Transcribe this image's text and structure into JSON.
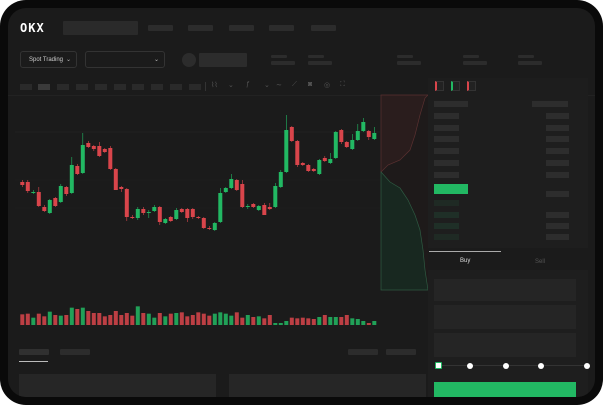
{
  "brand": {
    "logo": "OKX"
  },
  "header": {
    "market_selector": "Spot Trading",
    "market_chevron": "⌄",
    "pair_chevron": "⌄"
  },
  "order_form": {
    "tabs": [
      {
        "label": "Buy",
        "active": true
      },
      {
        "label": "Sell",
        "active": false
      }
    ],
    "slider_level": 0,
    "slider_stops": 5
  },
  "colors": {
    "up": "#22b863",
    "down": "#d9454b",
    "accent": "#22b863",
    "background": "#1b1b1b"
  },
  "chart_data": {
    "type": "candlestick",
    "candles": [
      [
        118,
        120,
        113,
        115
      ],
      [
        118,
        120,
        107,
        109
      ],
      [
        107,
        110,
        106,
        108
      ],
      [
        108,
        113,
        93,
        94
      ],
      [
        93,
        95,
        88,
        89
      ],
      [
        87,
        101,
        86,
        100
      ],
      [
        102,
        103,
        93,
        94
      ],
      [
        98,
        116,
        97,
        114
      ],
      [
        113,
        114,
        104,
        106
      ],
      [
        107,
        143,
        106,
        135
      ],
      [
        134,
        136,
        125,
        126
      ],
      [
        127,
        167,
        126,
        155
      ],
      [
        157,
        159,
        152,
        153
      ],
      [
        154,
        155,
        149,
        151
      ],
      [
        154,
        158,
        143,
        144
      ],
      [
        151,
        152,
        147,
        148
      ],
      [
        152,
        154,
        130,
        131
      ],
      [
        131,
        132,
        110,
        110
      ],
      [
        113,
        114,
        108,
        111
      ],
      [
        111,
        112,
        79,
        83
      ],
      [
        83,
        85,
        81,
        82
      ],
      [
        82,
        93,
        80,
        91
      ],
      [
        91,
        93,
        85,
        87
      ],
      [
        87,
        90,
        82,
        88
      ],
      [
        89,
        95,
        88,
        93
      ],
      [
        93,
        94,
        75,
        78
      ],
      [
        77,
        82,
        76,
        81
      ],
      [
        83,
        84,
        78,
        79
      ],
      [
        81,
        92,
        80,
        90
      ],
      [
        91,
        92,
        87,
        88
      ],
      [
        91,
        92,
        78,
        82
      ],
      [
        91,
        92,
        81,
        83
      ],
      [
        83,
        84,
        81,
        82
      ],
      [
        82,
        83,
        71,
        72
      ],
      [
        72,
        74,
        70,
        71
      ],
      [
        70,
        78,
        69,
        77
      ],
      [
        78,
        112,
        77,
        107
      ],
      [
        108,
        113,
        107,
        112
      ],
      [
        112,
        126,
        111,
        121
      ],
      [
        120,
        121,
        109,
        110
      ],
      [
        116,
        120,
        92,
        93
      ],
      [
        93,
        96,
        91,
        94
      ],
      [
        96,
        97,
        92,
        93
      ],
      [
        90,
        95,
        89,
        94
      ],
      [
        95,
        97,
        85,
        85
      ],
      [
        93,
        97,
        90,
        91
      ],
      [
        93,
        117,
        92,
        114
      ],
      [
        113,
        130,
        112,
        128
      ],
      [
        128,
        185,
        127,
        170
      ],
      [
        173,
        174,
        158,
        159
      ],
      [
        159,
        160,
        133,
        135
      ],
      [
        137,
        138,
        134,
        135
      ],
      [
        135,
        136,
        128,
        129
      ],
      [
        131,
        132,
        128,
        129
      ],
      [
        126,
        141,
        125,
        140
      ],
      [
        142,
        144,
        138,
        139
      ],
      [
        137,
        147,
        136,
        141
      ],
      [
        142,
        169,
        141,
        168
      ],
      [
        170,
        171,
        156,
        158
      ],
      [
        158,
        159,
        152,
        153
      ],
      [
        151,
        166,
        150,
        160
      ],
      [
        160,
        176,
        159,
        169
      ],
      [
        169,
        182,
        168,
        178
      ],
      [
        169,
        170,
        160,
        163
      ],
      [
        161,
        173,
        160,
        167
      ]
    ],
    "candle_format": [
      "open",
      "high",
      "low",
      "close"
    ],
    "volumes": [
      32,
      34,
      22,
      34,
      26,
      40,
      30,
      28,
      30,
      52,
      48,
      52,
      42,
      36,
      36,
      26,
      30,
      42,
      30,
      36,
      28,
      56,
      36,
      34,
      22,
      36,
      26,
      34,
      36,
      38,
      26,
      30,
      38,
      34,
      28,
      34,
      38,
      34,
      28,
      38,
      22,
      30,
      24,
      26,
      20,
      30,
      6,
      6,
      12,
      22,
      20,
      22,
      20,
      18,
      24,
      30,
      24,
      24,
      24,
      30,
      20,
      18,
      12,
      6,
      12
    ]
  }
}
